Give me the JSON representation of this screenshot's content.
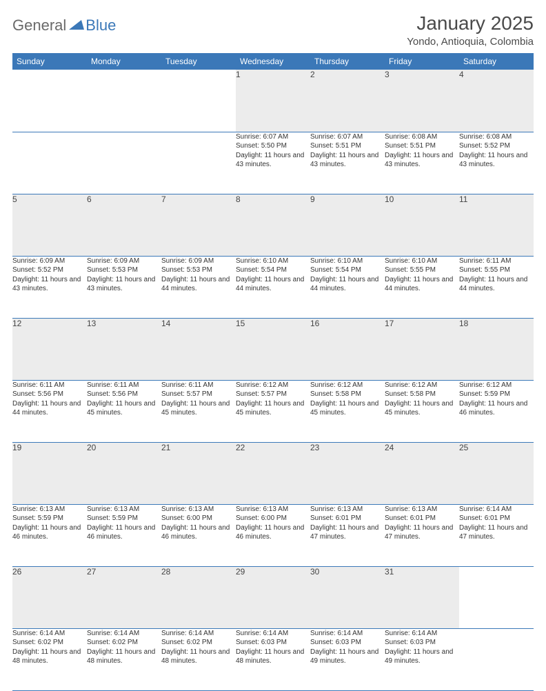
{
  "brand": {
    "part1": "General",
    "part2": "Blue"
  },
  "title": "January 2025",
  "location": "Yondo, Antioquia, Colombia",
  "colors": {
    "header_bg": "#3b78b8",
    "header_text": "#ffffff",
    "daynum_bg": "#ececec",
    "border": "#3b78b8",
    "logo_gray": "#6a6a6a",
    "logo_blue": "#3b78b8",
    "text": "#333333"
  },
  "typography": {
    "title_size_pt": 21,
    "location_size_pt": 11,
    "day_header_size_pt": 9,
    "cell_size_pt": 7.5
  },
  "day_names": [
    "Sunday",
    "Monday",
    "Tuesday",
    "Wednesday",
    "Thursday",
    "Friday",
    "Saturday"
  ],
  "labels": {
    "sunrise": "Sunrise:",
    "sunset": "Sunset:",
    "daylight": "Daylight:"
  },
  "weeks": [
    [
      {
        "n": "",
        "sr": "",
        "ss": "",
        "dl": ""
      },
      {
        "n": "",
        "sr": "",
        "ss": "",
        "dl": ""
      },
      {
        "n": "",
        "sr": "",
        "ss": "",
        "dl": ""
      },
      {
        "n": "1",
        "sr": "6:07 AM",
        "ss": "5:50 PM",
        "dl": "11 hours and 43 minutes."
      },
      {
        "n": "2",
        "sr": "6:07 AM",
        "ss": "5:51 PM",
        "dl": "11 hours and 43 minutes."
      },
      {
        "n": "3",
        "sr": "6:08 AM",
        "ss": "5:51 PM",
        "dl": "11 hours and 43 minutes."
      },
      {
        "n": "4",
        "sr": "6:08 AM",
        "ss": "5:52 PM",
        "dl": "11 hours and 43 minutes."
      }
    ],
    [
      {
        "n": "5",
        "sr": "6:09 AM",
        "ss": "5:52 PM",
        "dl": "11 hours and 43 minutes."
      },
      {
        "n": "6",
        "sr": "6:09 AM",
        "ss": "5:53 PM",
        "dl": "11 hours and 43 minutes."
      },
      {
        "n": "7",
        "sr": "6:09 AM",
        "ss": "5:53 PM",
        "dl": "11 hours and 44 minutes."
      },
      {
        "n": "8",
        "sr": "6:10 AM",
        "ss": "5:54 PM",
        "dl": "11 hours and 44 minutes."
      },
      {
        "n": "9",
        "sr": "6:10 AM",
        "ss": "5:54 PM",
        "dl": "11 hours and 44 minutes."
      },
      {
        "n": "10",
        "sr": "6:10 AM",
        "ss": "5:55 PM",
        "dl": "11 hours and 44 minutes."
      },
      {
        "n": "11",
        "sr": "6:11 AM",
        "ss": "5:55 PM",
        "dl": "11 hours and 44 minutes."
      }
    ],
    [
      {
        "n": "12",
        "sr": "6:11 AM",
        "ss": "5:56 PM",
        "dl": "11 hours and 44 minutes."
      },
      {
        "n": "13",
        "sr": "6:11 AM",
        "ss": "5:56 PM",
        "dl": "11 hours and 45 minutes."
      },
      {
        "n": "14",
        "sr": "6:11 AM",
        "ss": "5:57 PM",
        "dl": "11 hours and 45 minutes."
      },
      {
        "n": "15",
        "sr": "6:12 AM",
        "ss": "5:57 PM",
        "dl": "11 hours and 45 minutes."
      },
      {
        "n": "16",
        "sr": "6:12 AM",
        "ss": "5:58 PM",
        "dl": "11 hours and 45 minutes."
      },
      {
        "n": "17",
        "sr": "6:12 AM",
        "ss": "5:58 PM",
        "dl": "11 hours and 45 minutes."
      },
      {
        "n": "18",
        "sr": "6:12 AM",
        "ss": "5:59 PM",
        "dl": "11 hours and 46 minutes."
      }
    ],
    [
      {
        "n": "19",
        "sr": "6:13 AM",
        "ss": "5:59 PM",
        "dl": "11 hours and 46 minutes."
      },
      {
        "n": "20",
        "sr": "6:13 AM",
        "ss": "5:59 PM",
        "dl": "11 hours and 46 minutes."
      },
      {
        "n": "21",
        "sr": "6:13 AM",
        "ss": "6:00 PM",
        "dl": "11 hours and 46 minutes."
      },
      {
        "n": "22",
        "sr": "6:13 AM",
        "ss": "6:00 PM",
        "dl": "11 hours and 46 minutes."
      },
      {
        "n": "23",
        "sr": "6:13 AM",
        "ss": "6:01 PM",
        "dl": "11 hours and 47 minutes."
      },
      {
        "n": "24",
        "sr": "6:13 AM",
        "ss": "6:01 PM",
        "dl": "11 hours and 47 minutes."
      },
      {
        "n": "25",
        "sr": "6:14 AM",
        "ss": "6:01 PM",
        "dl": "11 hours and 47 minutes."
      }
    ],
    [
      {
        "n": "26",
        "sr": "6:14 AM",
        "ss": "6:02 PM",
        "dl": "11 hours and 48 minutes."
      },
      {
        "n": "27",
        "sr": "6:14 AM",
        "ss": "6:02 PM",
        "dl": "11 hours and 48 minutes."
      },
      {
        "n": "28",
        "sr": "6:14 AM",
        "ss": "6:02 PM",
        "dl": "11 hours and 48 minutes."
      },
      {
        "n": "29",
        "sr": "6:14 AM",
        "ss": "6:03 PM",
        "dl": "11 hours and 48 minutes."
      },
      {
        "n": "30",
        "sr": "6:14 AM",
        "ss": "6:03 PM",
        "dl": "11 hours and 49 minutes."
      },
      {
        "n": "31",
        "sr": "6:14 AM",
        "ss": "6:03 PM",
        "dl": "11 hours and 49 minutes."
      },
      {
        "n": "",
        "sr": "",
        "ss": "",
        "dl": ""
      }
    ]
  ]
}
